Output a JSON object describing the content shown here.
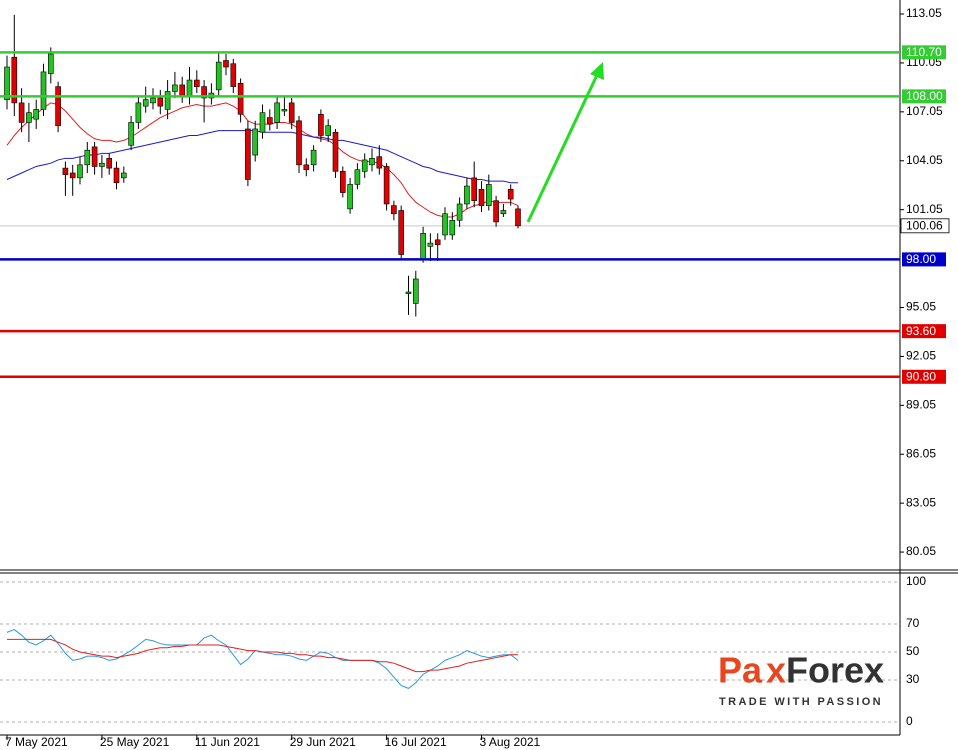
{
  "chart_data": [
    {
      "type": "candlestick",
      "open": [
        107.8,
        110.4,
        107.6,
        106.4,
        106.6,
        107.2,
        109.4,
        108.6,
        103.6,
        103.3,
        103.0,
        103.8,
        104.9,
        103.7,
        104.2,
        103.6,
        103.0,
        105.0,
        106.4,
        107.4,
        107.6,
        107.9,
        107.2,
        108.3,
        108.7,
        108.0,
        109.0,
        108.6,
        107.9,
        108.4,
        110.2,
        110.0,
        108.8,
        106.0,
        104.4,
        105.8,
        106.7,
        106.4,
        107.1,
        107.6,
        106.5,
        103.8,
        103.8,
        106.9,
        105.6,
        105.8,
        103.4,
        101.1,
        102.6,
        103.4,
        103.8,
        104.3,
        103.7,
        101.3,
        101.0,
        95.9,
        95.3,
        98.0,
        98.8,
        99.2,
        99.5,
        99.5,
        100.4,
        101.4,
        103.0,
        102.3,
        101.3,
        101.6,
        100.8,
        102.3,
        101.1
      ],
      "high": [
        110.5,
        113.0,
        108.5,
        107.6,
        107.8,
        110.0,
        111.0,
        108.9,
        104.0,
        103.8,
        104.3,
        105.2,
        105.2,
        104.4,
        104.5,
        104.0,
        103.7,
        106.8,
        108.0,
        108.6,
        108.5,
        108.4,
        109.0,
        109.5,
        109.2,
        109.8,
        109.6,
        109.0,
        108.8,
        110.7,
        110.6,
        110.3,
        109.1,
        106.5,
        106.5,
        107.5,
        107.2,
        108.0,
        108.0,
        107.9,
        106.8,
        104.2,
        105.0,
        107.2,
        106.6,
        106.0,
        103.7,
        103.0,
        103.9,
        104.5,
        104.8,
        105.0,
        103.9,
        101.6,
        101.3,
        97.0,
        97.3,
        100.0,
        99.6,
        99.6,
        101.2,
        100.9,
        101.8,
        103.0,
        104.0,
        102.8,
        103.2,
        101.9,
        101.4,
        102.6,
        101.3
      ],
      "low": [
        107.2,
        106.8,
        105.8,
        105.2,
        106.0,
        106.8,
        108.8,
        105.8,
        101.9,
        101.9,
        102.6,
        103.3,
        103.2,
        103.0,
        103.2,
        102.3,
        102.7,
        104.7,
        106.0,
        107.0,
        107.2,
        106.9,
        106.6,
        107.9,
        107.6,
        107.5,
        108.2,
        106.4,
        107.5,
        108.0,
        109.3,
        108.2,
        106.4,
        102.5,
        104.0,
        105.4,
        105.9,
        106.0,
        106.8,
        106.0,
        103.3,
        103.1,
        103.4,
        105.2,
        105.2,
        103.0,
        101.8,
        100.8,
        102.3,
        103.0,
        103.4,
        103.2,
        101.0,
        100.4,
        98.0,
        94.6,
        94.5,
        97.8,
        97.9,
        97.9,
        99.2,
        99.2,
        100.0,
        101.1,
        101.2,
        100.9,
        101.0,
        100.0,
        100.6,
        101.3,
        99.9
      ],
      "close": [
        109.8,
        107.6,
        106.4,
        107.0,
        107.2,
        109.5,
        110.6,
        106.2,
        103.2,
        103.0,
        103.8,
        104.7,
        103.7,
        103.9,
        103.6,
        102.7,
        103.3,
        106.4,
        107.6,
        107.8,
        107.9,
        107.4,
        108.3,
        108.7,
        108.0,
        109.0,
        108.6,
        107.9,
        108.2,
        110.1,
        109.8,
        108.6,
        106.9,
        102.9,
        106.0,
        107.0,
        106.3,
        107.6,
        107.2,
        106.4,
        103.8,
        103.5,
        104.7,
        105.6,
        106.2,
        103.4,
        102.1,
        102.6,
        103.5,
        104.1,
        104.2,
        103.6,
        101.4,
        100.8,
        98.3,
        96.0,
        96.8,
        99.6,
        99.0,
        98.9,
        100.8,
        100.4,
        101.4,
        102.5,
        101.6,
        101.3,
        102.6,
        100.3,
        101.0,
        101.7,
        100.06
      ],
      "up_color": "#22c322",
      "down_color": "#e00000",
      "series": [
        {
          "color": "#e02020",
          "values": [
            105.0,
            105.6,
            106.1,
            106.5,
            106.9,
            107.3,
            107.6,
            107.5,
            107.1,
            106.6,
            106.1,
            105.7,
            105.4,
            105.3,
            105.3,
            105.2,
            105.3,
            105.5,
            105.8,
            106.1,
            106.4,
            106.7,
            106.9,
            107.1,
            107.3,
            107.4,
            107.5,
            107.4,
            107.4,
            107.5,
            107.6,
            107.4,
            107.1,
            106.5,
            106.3,
            106.3,
            106.3,
            106.4,
            106.4,
            106.3,
            106.0,
            105.7,
            105.5,
            105.4,
            105.3,
            105.0,
            104.6,
            104.3,
            104.1,
            104.0,
            104.0,
            103.9,
            103.6,
            103.2,
            102.7,
            102.0,
            101.5,
            101.2,
            100.9,
            100.7,
            100.6,
            100.6,
            100.8,
            101.1,
            101.3,
            101.4,
            101.6,
            101.5,
            101.5,
            101.5,
            101.3
          ]
        },
        {
          "color": "#1a1ac8",
          "values": [
            102.9,
            103.1,
            103.3,
            103.5,
            103.7,
            103.8,
            103.9,
            104.1,
            104.2,
            104.2,
            104.3,
            104.4,
            104.4,
            104.5,
            104.5,
            104.6,
            104.7,
            104.8,
            104.9,
            105.0,
            105.1,
            105.2,
            105.3,
            105.4,
            105.5,
            105.6,
            105.6,
            105.7,
            105.8,
            105.9,
            105.9,
            105.9,
            105.9,
            105.9,
            105.9,
            105.8,
            105.8,
            105.8,
            105.8,
            105.8,
            105.7,
            105.6,
            105.5,
            105.5,
            105.4,
            105.3,
            105.3,
            105.2,
            105.1,
            105.0,
            104.9,
            104.8,
            104.7,
            104.5,
            104.3,
            104.1,
            103.9,
            103.7,
            103.6,
            103.4,
            103.3,
            103.2,
            103.1,
            103.0,
            102.9,
            102.9,
            102.8,
            102.8,
            102.8,
            102.7,
            102.7
          ]
        }
      ],
      "ylim": [
        78.95,
        113.91
      ],
      "yticks": [
        113.05,
        110.05,
        107.05,
        104.05,
        101.05,
        95.05,
        92.05,
        89.05,
        86.05,
        83.05,
        80.05
      ],
      "levels": [
        {
          "value": 110.7,
          "label": "110.70",
          "color": "#33cc33"
        },
        {
          "value": 108.0,
          "label": "108.00",
          "color": "#33cc33"
        },
        {
          "value": 98.0,
          "label": "98.00",
          "color": "#0000cc"
        },
        {
          "value": 93.6,
          "label": "93.60",
          "color": "#e00000"
        },
        {
          "value": 90.8,
          "label": "90.80",
          "color": "#e00000"
        }
      ],
      "current": {
        "value": 100.06,
        "color": "#c8c8c8"
      }
    },
    {
      "type": "line",
      "series": [
        {
          "color": "#2a9ae0",
          "values": [
            64,
            66,
            62,
            57,
            55,
            58,
            62,
            56,
            49,
            44,
            45,
            47,
            47,
            46,
            44,
            45,
            48,
            51,
            55,
            59,
            58,
            56,
            55,
            55,
            55,
            55,
            55,
            60,
            62,
            58,
            55,
            48,
            41,
            45,
            51,
            50,
            49,
            48,
            48,
            47,
            45,
            44,
            47,
            50,
            49,
            46,
            44,
            44,
            44,
            44,
            44,
            42,
            38,
            32,
            26,
            24,
            28,
            34,
            37,
            40,
            44,
            46,
            48,
            51,
            49,
            47,
            46,
            47,
            48,
            48,
            44
          ]
        },
        {
          "color": "#e02020",
          "values": [
            59,
            59,
            59,
            59,
            59,
            59,
            59,
            57,
            55,
            52,
            50,
            49,
            48,
            47,
            47,
            46,
            47,
            48,
            49,
            51,
            52,
            53,
            53,
            54,
            54,
            55,
            55,
            55,
            55,
            55,
            54,
            53,
            52,
            51,
            51,
            50,
            50,
            50,
            49,
            49,
            48,
            48,
            47,
            47,
            46,
            46,
            45,
            44,
            44,
            44,
            44,
            43,
            43,
            42,
            40,
            38,
            36,
            36,
            37,
            37,
            38,
            39,
            40,
            42,
            43,
            44,
            45,
            46,
            47,
            48,
            48
          ]
        }
      ],
      "ylim": [
        -9.3,
        106.4
      ],
      "yticks": [
        100,
        70,
        50,
        30,
        0
      ],
      "grid": true,
      "xticks": [
        {
          "value": 0,
          "label": "7 May 2021"
        },
        {
          "value": 13,
          "label": "25 May 2021"
        },
        {
          "value": 26,
          "label": "11 Jun 2021"
        },
        {
          "value": 39,
          "label": "29 Jun 2021"
        },
        {
          "value": 52,
          "label": "16 Jul 2021"
        },
        {
          "value": 65,
          "label": "3 Aug 2021"
        }
      ]
    }
  ],
  "logo": {
    "left": "Pa",
    "mid": "x",
    "right": "Forex",
    "tagline": "TRADE WITH PASSION"
  }
}
